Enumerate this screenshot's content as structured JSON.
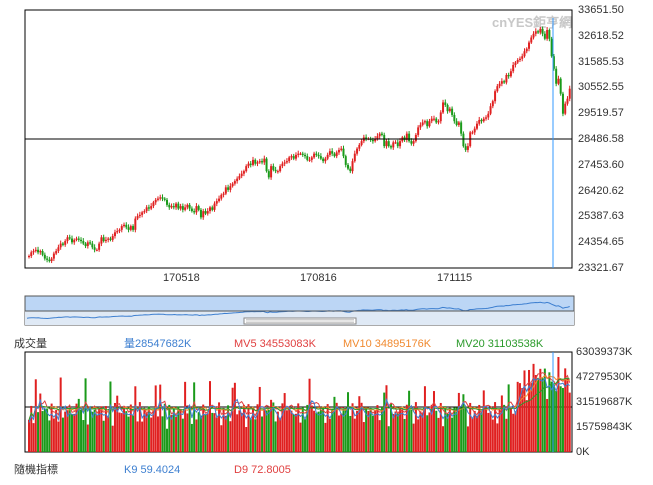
{
  "watermark": "cnYES鉅亨網",
  "colors": {
    "up": "#e02020",
    "down": "#1a9a1a",
    "crosshair": "#3399ff",
    "grid": "#000000",
    "text": "#333333",
    "navFill": "#bcd6f5",
    "navLine": "#3d7fd0",
    "ma5": "#e04040",
    "ma10": "#f08a30",
    "ma20": "#2a9a2a",
    "ma": "#3d7fd0"
  },
  "price_chart": {
    "y_ticks": [
      "33651.50",
      "32618.52",
      "31585.53",
      "30552.55",
      "29519.57",
      "28486.58",
      "27453.60",
      "26420.62",
      "25387.63",
      "24354.65",
      "23321.67"
    ],
    "x_ticks": [
      "170518",
      "170816",
      "171115"
    ]
  },
  "volume_chart": {
    "legend": {
      "vol": "量28547682K",
      "mv5": "MV5 34553083K",
      "mv10": "MV10 34895176K",
      "mv20": "MV20 31103538K"
    },
    "title": "成交量",
    "y_ticks": [
      "63039373K",
      "47279530K",
      "31519687K",
      "15759843K",
      "0K"
    ]
  },
  "indicator": {
    "title": "隨機指標",
    "k": "K9 59.4024",
    "d": "D9 72.8005"
  },
  "chart_data": [
    {
      "type": "candlestick",
      "ylim": [
        23321.67,
        33651.5
      ],
      "close": [
        23800,
        23950,
        24000,
        24050,
        23950,
        24000,
        23850,
        23700,
        23650,
        23600,
        23700,
        23900,
        24000,
        24150,
        24300,
        24250,
        24400,
        24550,
        24500,
        24350,
        24450,
        24500,
        24450,
        24400,
        24300,
        24200,
        24350,
        24300,
        24150,
        24050,
        24050,
        24300,
        24550,
        24400,
        24450,
        24500,
        24450,
        24600,
        24750,
        24800,
        24850,
        25000,
        25050,
        24950,
        24850,
        25000,
        24850,
        25300,
        25400,
        25450,
        25550,
        25600,
        25750,
        25700,
        25800,
        25950,
        26050,
        26100,
        26150,
        26100,
        26050,
        25850,
        25750,
        25800,
        25750,
        25900,
        25700,
        25800,
        25650,
        25750,
        25850,
        25700,
        25600,
        25550,
        25800,
        25650,
        25350,
        25600,
        25500,
        25600,
        25750,
        25650,
        25900,
        26000,
        26100,
        26250,
        26300,
        26550,
        26450,
        26600,
        26700,
        26800,
        26900,
        27000,
        27100,
        27200,
        27400,
        27500,
        27450,
        27650,
        27500,
        27550,
        27600,
        27550,
        27700,
        27200,
        26950,
        27400,
        27250,
        27200,
        27200,
        27400,
        27500,
        27550,
        27600,
        27750,
        27800,
        27700,
        27850,
        27900,
        27900,
        27850,
        27800,
        27650,
        27650,
        27750,
        27900,
        27850,
        27800,
        27700,
        27600,
        27700,
        27850,
        28000,
        27900,
        27800,
        27950,
        28050,
        28100,
        27800,
        27450,
        27300,
        27200,
        27600,
        27900,
        28100,
        28250,
        28400,
        28550,
        28500,
        28500,
        28450,
        28400,
        28500,
        28600,
        28700,
        28650,
        28200,
        28400,
        28200,
        28150,
        28350,
        28350,
        28200,
        28400,
        28550,
        28450,
        28700,
        28400,
        28300,
        28400,
        28650,
        28950,
        29050,
        29150,
        29200,
        29000,
        29200,
        29300,
        29300,
        29150,
        29200,
        29550,
        29950,
        29850,
        29600,
        29700,
        29450,
        29200,
        29050,
        29150,
        28700,
        28200,
        28050,
        28200,
        28750,
        28750,
        28900,
        29100,
        29250,
        29200,
        29300,
        29350,
        29500,
        29800,
        30000,
        30400,
        30600,
        30700,
        30800,
        30750,
        31050,
        31000,
        31200,
        31450,
        31550,
        31650,
        31700,
        31800,
        32000,
        32100,
        32350,
        32550,
        32700,
        32800,
        32750,
        32900,
        32700,
        32500,
        32850,
        32500,
        31800,
        31300,
        30700,
        30900,
        30300,
        29500,
        29900,
        30100,
        30500
      ],
      "highlight_value": 28486.58
    },
    {
      "type": "bar",
      "title": "成交量",
      "series_names": [
        "量",
        "MV5",
        "MV10",
        "MV20"
      ],
      "ylim": [
        0,
        63039373
      ],
      "note_units": "K"
    }
  ]
}
